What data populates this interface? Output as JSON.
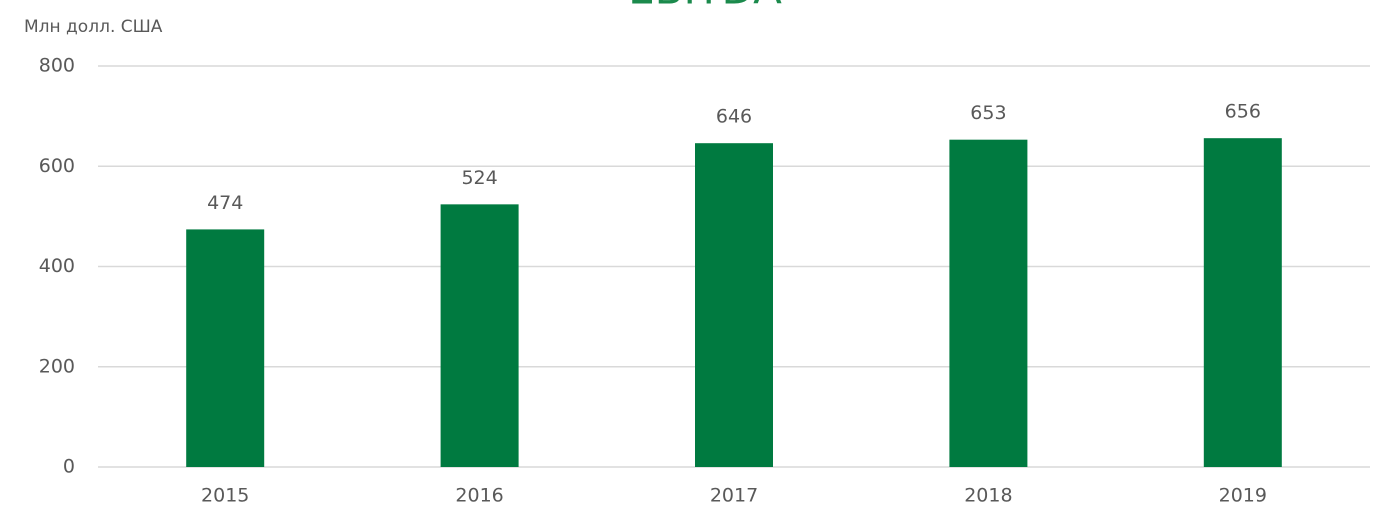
{
  "chart_data": {
    "type": "bar",
    "title": "EBITDA",
    "y_axis_label": "Млн долл. США",
    "categories": [
      "2015",
      "2016",
      "2017",
      "2018",
      "2019"
    ],
    "values": [
      474,
      524,
      646,
      653,
      656
    ],
    "color": "#007a40",
    "ylim": [
      0,
      800
    ],
    "yticks": [
      0,
      200,
      400,
      600,
      800
    ],
    "grid": true
  }
}
